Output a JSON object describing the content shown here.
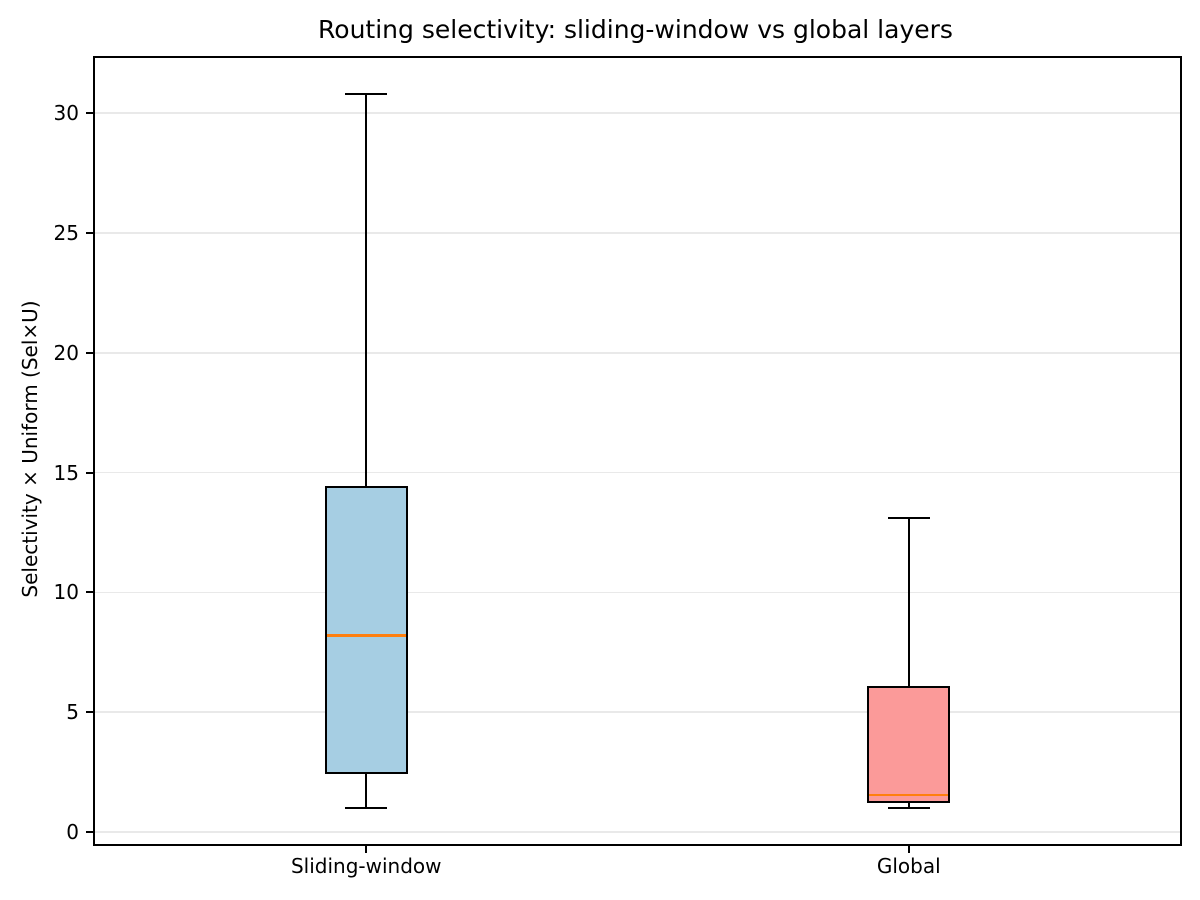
{
  "chart_data": {
    "type": "box",
    "title": "Routing selectivity: sliding-window vs global layers",
    "ylabel": "Selectivity × Uniform (Sel×U)",
    "xlabel": "",
    "categories": [
      "Sliding-window",
      "Global"
    ],
    "series": [
      {
        "name": "Sliding-window",
        "whisker_low": 1.0,
        "q1": 2.4,
        "median": 8.2,
        "q3": 14.45,
        "whisker_high": 30.8,
        "fill_color": "#a6cee3"
      },
      {
        "name": "Global",
        "whisker_low": 1.0,
        "q1": 1.2,
        "median": 1.55,
        "q3": 6.1,
        "whisker_high": 13.1,
        "fill_color": "#fb9a99"
      }
    ],
    "yticks": [
      0,
      5,
      10,
      15,
      20,
      25,
      30
    ],
    "ylim": [
      -0.5,
      32.3
    ],
    "grid": "horizontal",
    "grid_color": "#e9e9e9",
    "median_color": "#ff7f0e",
    "edge_color": "#000000",
    "legend": "none"
  }
}
